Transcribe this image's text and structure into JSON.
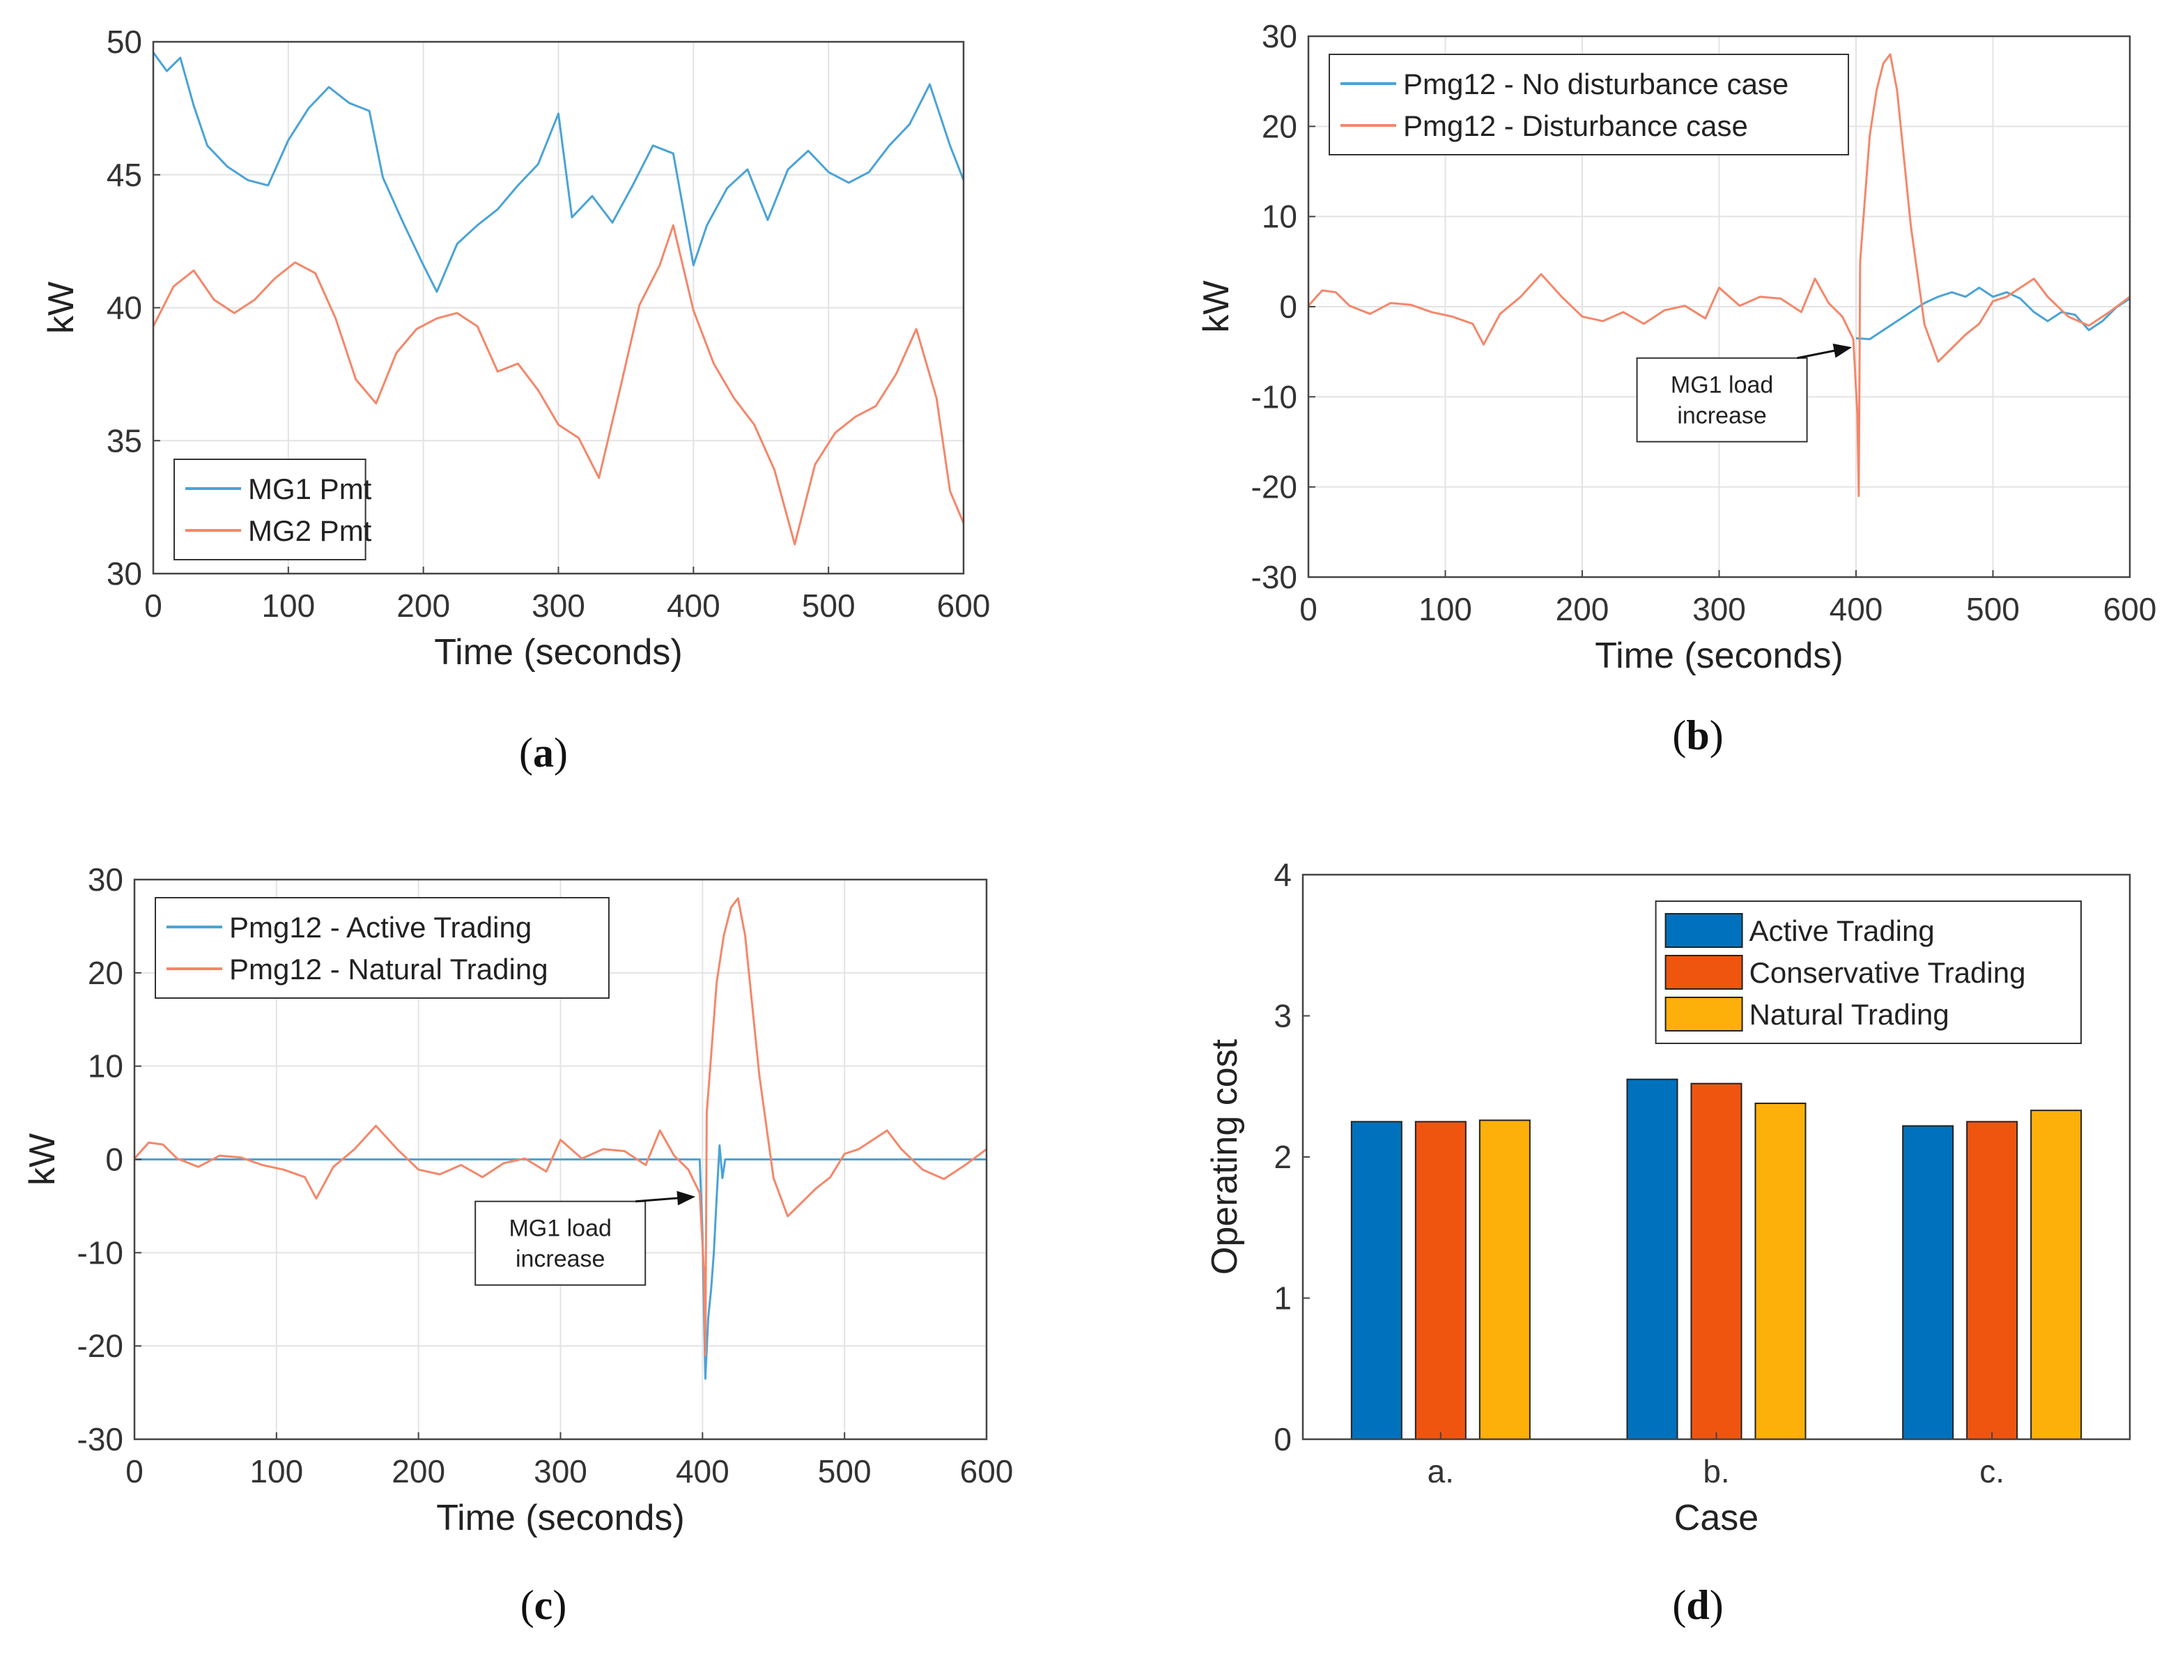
{
  "figure": {
    "panel_captions": [
      "(a)",
      "(b)",
      "(c)",
      "(d)"
    ]
  },
  "chart_data": [
    {
      "id": "a",
      "type": "line",
      "caption": "(a)",
      "xlabel": "Time (seconds)",
      "ylabel": "kW",
      "xlim": [
        0,
        600
      ],
      "ylim": [
        30,
        50
      ],
      "xticks": [
        0,
        100,
        200,
        300,
        400,
        500,
        600
      ],
      "yticks": [
        30,
        35,
        40,
        45,
        50
      ],
      "grid": true,
      "legend": "bottom-left",
      "series": [
        {
          "name": "MG1 Pmt",
          "color": "#4aa3d6",
          "x": [
            0,
            10,
            20,
            30,
            40,
            55,
            70,
            85,
            100,
            115,
            130,
            145,
            160,
            170,
            185,
            200,
            210,
            225,
            240,
            255,
            270,
            285,
            300,
            310,
            325,
            340,
            355,
            370,
            385,
            400,
            410,
            425,
            440,
            455,
            470,
            485,
            500,
            515,
            530,
            545,
            560,
            575,
            590,
            600
          ],
          "y": [
            49.6,
            48.9,
            49.4,
            47.6,
            46.1,
            45.3,
            44.8,
            44.6,
            46.3,
            47.5,
            48.3,
            47.7,
            47.4,
            44.9,
            43.2,
            41.6,
            40.6,
            42.4,
            43.1,
            43.7,
            44.6,
            45.4,
            47.3,
            43.4,
            44.2,
            43.2,
            44.6,
            46.1,
            45.8,
            41.6,
            43.1,
            44.5,
            45.2,
            43.3,
            45.2,
            45.9,
            45.1,
            44.7,
            45.1,
            46.1,
            46.9,
            48.4,
            46.1,
            44.8
          ]
        },
        {
          "name": "MG2 Pmt",
          "color": "#f4876a",
          "x": [
            0,
            15,
            30,
            45,
            60,
            75,
            90,
            105,
            120,
            135,
            150,
            165,
            180,
            195,
            210,
            225,
            240,
            255,
            270,
            285,
            300,
            315,
            330,
            345,
            360,
            375,
            385,
            400,
            415,
            430,
            445,
            460,
            475,
            490,
            505,
            520,
            535,
            550,
            565,
            580,
            590,
            600
          ],
          "y": [
            39.3,
            40.8,
            41.4,
            40.3,
            39.8,
            40.3,
            41.1,
            41.7,
            41.3,
            39.6,
            37.3,
            36.4,
            38.3,
            39.2,
            39.6,
            39.8,
            39.3,
            37.6,
            37.9,
            36.9,
            35.6,
            35.1,
            33.6,
            36.8,
            40.1,
            41.6,
            43.1,
            39.9,
            37.9,
            36.6,
            35.6,
            33.9,
            31.1,
            34.1,
            35.3,
            35.9,
            36.3,
            37.5,
            39.2,
            36.6,
            33.1,
            31.9
          ]
        }
      ]
    },
    {
      "id": "b",
      "type": "line",
      "caption": "(b)",
      "xlabel": "Time (seconds)",
      "ylabel": "kW",
      "xlim": [
        0,
        600
      ],
      "ylim": [
        -30,
        30
      ],
      "xticks": [
        0,
        100,
        200,
        300,
        400,
        500,
        600
      ],
      "yticks": [
        -30,
        -20,
        -10,
        0,
        10,
        20,
        30
      ],
      "grid": true,
      "legend": "top-left",
      "annotation": {
        "text_lines": [
          "MG1 load",
          "increase"
        ],
        "points_to": [
          397,
          -4.5
        ]
      },
      "series": [
        {
          "name": "Pmg12 - No disturbance case",
          "color": "#4aa3d6",
          "x": [
            400,
            410,
            420,
            430,
            440,
            450,
            460,
            470,
            480,
            490,
            500,
            510,
            520,
            530,
            540,
            550,
            560,
            570,
            580,
            590,
            600
          ],
          "y": [
            -3.5,
            -3.6,
            -2.6,
            -1.6,
            -0.6,
            0.4,
            1.1,
            1.6,
            1.1,
            2.1,
            1.1,
            1.6,
            0.9,
            -0.6,
            -1.6,
            -0.6,
            -0.9,
            -2.6,
            -1.6,
            -0.1,
            0.9
          ]
        },
        {
          "name": "Pmg12 - Disturbance case",
          "color": "#f4876a",
          "x": [
            0,
            10,
            20,
            30,
            45,
            60,
            75,
            90,
            105,
            120,
            128,
            140,
            155,
            170,
            185,
            200,
            215,
            230,
            245,
            260,
            275,
            290,
            300,
            315,
            330,
            345,
            360,
            370,
            380,
            390,
            398,
            401,
            402,
            403,
            405,
            410,
            415,
            420,
            425,
            430,
            440,
            450,
            460,
            470,
            480,
            490,
            500,
            510,
            520,
            530,
            540,
            555,
            570,
            585,
            600
          ],
          "y": [
            0.1,
            1.8,
            1.6,
            0.1,
            -0.8,
            0.4,
            0.2,
            -0.6,
            -1.1,
            -1.9,
            -4.2,
            -0.8,
            1.1,
            3.6,
            1.1,
            -1.1,
            -1.6,
            -0.6,
            -1.9,
            -0.4,
            0.1,
            -1.3,
            2.1,
            0.1,
            1.1,
            0.9,
            -0.6,
            3.1,
            0.4,
            -1.1,
            -3.6,
            -12,
            -21,
            5,
            9,
            19,
            24,
            27,
            28,
            24,
            9,
            -2,
            -6.1,
            -4.6,
            -3.1,
            -1.9,
            0.6,
            1.1,
            2.1,
            3.1,
            1.1,
            -1.1,
            -2.1,
            -0.6,
            1.1
          ]
        }
      ]
    },
    {
      "id": "c",
      "type": "line",
      "caption": "(c)",
      "xlabel": "Time (seconds)",
      "ylabel": "kW",
      "xlim": [
        0,
        600
      ],
      "ylim": [
        -30,
        30
      ],
      "xticks": [
        0,
        100,
        200,
        300,
        400,
        500,
        600
      ],
      "yticks": [
        -30,
        -20,
        -10,
        0,
        10,
        20,
        30
      ],
      "grid": true,
      "legend": "top-left",
      "annotation": {
        "text_lines": [
          "MG1 load",
          "increase"
        ],
        "points_to": [
          395,
          -4
        ]
      },
      "series": [
        {
          "name": "Pmg12 - Active Trading",
          "color": "#4aa3d6",
          "x": [
            0,
            398,
            400,
            402,
            404,
            406,
            408,
            410,
            412,
            414,
            416,
            420,
            600
          ],
          "y": [
            0,
            0,
            -8,
            -23.5,
            -17,
            -14,
            -10,
            -4,
            1.5,
            -2,
            0,
            0,
            0
          ]
        },
        {
          "name": "Pmg12 - Natural Trading",
          "color": "#f4876a",
          "x": [
            0,
            10,
            20,
            30,
            45,
            60,
            75,
            90,
            105,
            120,
            128,
            140,
            155,
            170,
            185,
            200,
            215,
            230,
            245,
            260,
            275,
            290,
            300,
            315,
            330,
            345,
            360,
            370,
            380,
            390,
            398,
            401,
            402,
            403,
            405,
            410,
            415,
            420,
            425,
            430,
            440,
            450,
            460,
            470,
            480,
            490,
            500,
            510,
            520,
            530,
            540,
            555,
            570,
            585,
            600
          ],
          "y": [
            0.1,
            1.8,
            1.6,
            0.1,
            -0.8,
            0.4,
            0.2,
            -0.6,
            -1.1,
            -1.9,
            -4.2,
            -0.8,
            1.1,
            3.6,
            1.1,
            -1.1,
            -1.6,
            -0.6,
            -1.9,
            -0.4,
            0.1,
            -1.3,
            2.1,
            0.1,
            1.1,
            0.9,
            -0.6,
            3.1,
            0.4,
            -1.1,
            -3.6,
            -12,
            -21,
            5,
            9,
            19,
            24,
            27,
            28,
            24,
            9,
            -2,
            -6.1,
            -4.6,
            -3.1,
            -1.9,
            0.6,
            1.1,
            2.1,
            3.1,
            1.1,
            -1.1,
            -2.1,
            -0.6,
            1.1
          ]
        }
      ]
    },
    {
      "id": "d",
      "type": "bar",
      "caption": "(d)",
      "xlabel": "Case",
      "ylabel": "Operating cost",
      "ylim": [
        0,
        4
      ],
      "yticks": [
        0,
        1,
        2,
        3,
        4
      ],
      "grid": false,
      "legend": "top-right",
      "categories": [
        "a.",
        "b.",
        "c."
      ],
      "series": [
        {
          "name": "Active Trading",
          "color": "#0072bd",
          "values": [
            2.25,
            2.55,
            2.22
          ]
        },
        {
          "name": "Conservative Trading",
          "color": "#f05510",
          "values": [
            2.25,
            2.52,
            2.25
          ]
        },
        {
          "name": "Natural Trading",
          "color": "#fdb00a",
          "values": [
            2.26,
            2.38,
            2.33
          ]
        }
      ]
    }
  ]
}
